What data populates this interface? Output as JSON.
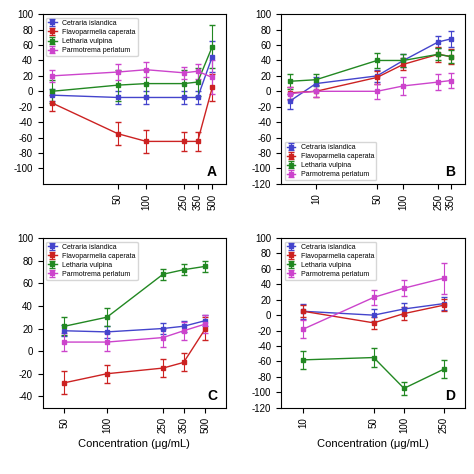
{
  "chart_data": [
    {
      "type": "line",
      "annotation": "A",
      "log": "x",
      "legend": "upper left",
      "grid": false,
      "x": [
        10,
        50,
        100,
        250,
        350,
        500
      ],
      "series": [
        {
          "name": "Cetraria islandica",
          "color": "#4444cc",
          "marker": "square",
          "values": [
            -5,
            -8,
            -8,
            -8,
            -8,
            45
          ],
          "yerr": [
            8,
            8,
            8,
            8,
            8,
            20
          ]
        },
        {
          "name": "Flavoparmelia caperata",
          "color": "#cc2222",
          "marker": "square",
          "values": [
            -15,
            -55,
            -65,
            -65,
            -65,
            5
          ],
          "yerr": [
            10,
            15,
            15,
            12,
            12,
            18
          ]
        },
        {
          "name": "Letharia vulpina",
          "color": "#228822",
          "marker": "square",
          "values": [
            0,
            8,
            10,
            10,
            12,
            58
          ],
          "yerr": [
            15,
            20,
            18,
            18,
            18,
            28
          ]
        },
        {
          "name": "Parmotrema perlatum",
          "color": "#cc44cc",
          "marker": "square",
          "values": [
            20,
            25,
            28,
            24,
            26,
            18
          ],
          "yerr": [
            8,
            10,
            10,
            8,
            10,
            22
          ]
        }
      ],
      "xlim": [
        8,
        700
      ],
      "xticks": [
        50,
        100,
        250,
        350,
        500
      ],
      "ylim": [
        -120,
        100
      ],
      "yticks": [
        -100,
        -80,
        -60,
        -40,
        -20,
        0,
        20,
        40,
        60,
        80,
        100
      ]
    },
    {
      "type": "line",
      "annotation": "B",
      "log": "x",
      "legend": "lower left",
      "grid": false,
      "x": [
        5,
        10,
        50,
        100,
        250,
        350
      ],
      "series": [
        {
          "name": "Cetraria islandica",
          "color": "#4444cc",
          "marker": "square",
          "values": [
            -13,
            10,
            20,
            40,
            64,
            68
          ],
          "yerr": [
            10,
            8,
            8,
            8,
            8,
            10
          ]
        },
        {
          "name": "Flavoparmelia caperata",
          "color": "#cc2222",
          "marker": "square",
          "values": [
            -2,
            0,
            18,
            35,
            48,
            45
          ],
          "yerr": [
            8,
            8,
            8,
            8,
            10,
            10
          ]
        },
        {
          "name": "Letharia vulpina",
          "color": "#228822",
          "marker": "square",
          "values": [
            13,
            15,
            40,
            40,
            48,
            45
          ],
          "yerr": [
            10,
            8,
            10,
            8,
            8,
            8
          ]
        },
        {
          "name": "Parmotrema perlatum",
          "color": "#cc44cc",
          "marker": "square",
          "values": [
            -3,
            0,
            0,
            7,
            12,
            14
          ],
          "yerr": [
            8,
            8,
            10,
            12,
            10,
            10
          ]
        }
      ],
      "xlim": [
        4,
        500
      ],
      "xticks": [
        10,
        50,
        100,
        250,
        350
      ],
      "ylim": [
        -120,
        100
      ],
      "yticks": [
        -120,
        -100,
        -80,
        -60,
        -40,
        -20,
        0,
        20,
        40,
        60,
        80,
        100
      ]
    },
    {
      "type": "line",
      "annotation": "C",
      "log": "x",
      "legend": "upper left",
      "grid": false,
      "xlabel": "Concentration (μg/mL)",
      "x": [
        50,
        100,
        250,
        350,
        500
      ],
      "series": [
        {
          "name": "Cetraria islandica",
          "color": "#4444cc",
          "marker": "square",
          "values": [
            18,
            17,
            20,
            22,
            27
          ],
          "yerr": [
            5,
            5,
            5,
            5,
            5
          ]
        },
        {
          "name": "Flavoparmelia caperata",
          "color": "#cc2222",
          "marker": "square",
          "values": [
            -28,
            -20,
            -15,
            -10,
            20
          ],
          "yerr": [
            10,
            8,
            8,
            8,
            10
          ]
        },
        {
          "name": "Letharia vulpina",
          "color": "#228822",
          "marker": "square",
          "values": [
            22,
            30,
            68,
            72,
            75
          ],
          "yerr": [
            8,
            8,
            5,
            5,
            5
          ]
        },
        {
          "name": "Parmotrema perlatum",
          "color": "#cc44cc",
          "marker": "square",
          "values": [
            8,
            8,
            12,
            18,
            24
          ],
          "yerr": [
            8,
            8,
            8,
            8,
            8
          ]
        }
      ],
      "xlim": [
        35,
        700
      ],
      "xticks": [
        50,
        100,
        250,
        350,
        500
      ],
      "ylim": [
        -50,
        100
      ],
      "yticks": [
        -40,
        -20,
        0,
        20,
        40,
        60,
        80,
        100
      ]
    },
    {
      "type": "line",
      "annotation": "D",
      "log": "x",
      "legend": "upper left",
      "grid": false,
      "xlabel": "Concentration (μg/mL)",
      "x": [
        10,
        50,
        100,
        250
      ],
      "series": [
        {
          "name": "Cetraria islandica",
          "color": "#4444cc",
          "marker": "square",
          "values": [
            5,
            0,
            8,
            15
          ],
          "yerr": [
            10,
            8,
            8,
            8
          ]
        },
        {
          "name": "Flavoparmelia caperata",
          "color": "#cc2222",
          "marker": "square",
          "values": [
            5,
            -10,
            2,
            13
          ],
          "yerr": [
            8,
            8,
            8,
            8
          ]
        },
        {
          "name": "Letharia vulpina",
          "color": "#228822",
          "marker": "square",
          "values": [
            -58,
            -55,
            -95,
            -70
          ],
          "yerr": [
            12,
            12,
            8,
            12
          ]
        },
        {
          "name": "Parmotrema perlatum",
          "color": "#cc44cc",
          "marker": "square",
          "values": [
            -18,
            23,
            35,
            48
          ],
          "yerr": [
            12,
            10,
            10,
            20
          ]
        }
      ],
      "xlim": [
        6,
        400
      ],
      "xticks": [
        10,
        50,
        100,
        250
      ],
      "ylim": [
        -120,
        100
      ],
      "yticks": [
        -120,
        -100,
        -80,
        -60,
        -40,
        -20,
        0,
        20,
        40,
        60,
        80,
        100
      ]
    }
  ]
}
